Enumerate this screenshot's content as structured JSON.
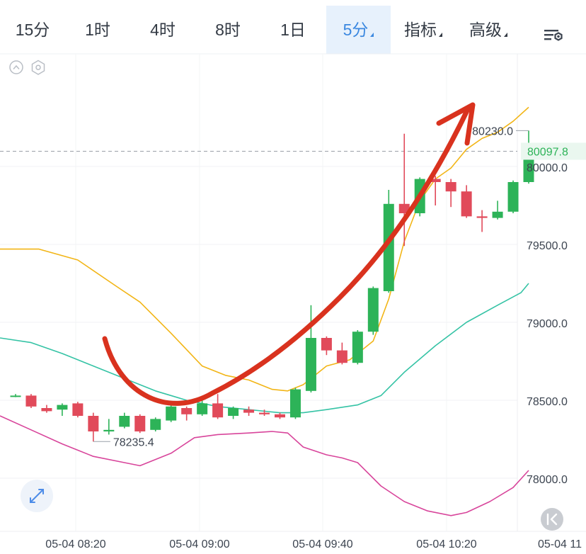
{
  "toolbar": {
    "tabs": [
      {
        "label": "15分",
        "active": false,
        "dropdown": false
      },
      {
        "label": "1时",
        "active": false,
        "dropdown": false
      },
      {
        "label": "4时",
        "active": false,
        "dropdown": false
      },
      {
        "label": "8时",
        "active": false,
        "dropdown": false
      },
      {
        "label": "1日",
        "active": false,
        "dropdown": false
      },
      {
        "label": "5分",
        "active": true,
        "dropdown": true
      },
      {
        "label": "指标",
        "active": false,
        "dropdown": true
      },
      {
        "label": "高级",
        "active": false,
        "dropdown": true
      }
    ],
    "settings_icon": "chart-settings-icon"
  },
  "controls": {
    "collapse_icon": "chevron-up-circle-icon",
    "indicator_settings_icon": "hexagon-settings-icon",
    "fullscreen_icon": "expand-arrows-icon",
    "scroll_latest_icon": "skip-to-latest-icon"
  },
  "colors": {
    "up": "#2db358",
    "down": "#e14a5a",
    "ma_short": "#f2b516",
    "boll_mid": "#35c3a5",
    "boll_low": "#d8459b",
    "annotation_arrow": "#d9321e",
    "price_label": "#2db358",
    "active_tab": "#3b88e0"
  },
  "chart_data": {
    "type": "candlestick",
    "interval": "5分",
    "y_ticks": [
      80000.0,
      79500.0,
      79000.0,
      78500.0,
      78000.0
    ],
    "y_tick_labels": [
      "80000.0",
      "79500.0",
      "79000.0",
      "78500.0",
      "78000.0"
    ],
    "x_tick_labels": [
      "05-04 08:20",
      "05-04 09:00",
      "05-04 09:40",
      "05-04 10:20",
      "05-04 11"
    ],
    "current_price": 80097.8,
    "current_price_label": "80097.8",
    "high_marker_label": "80230.0",
    "low_marker_label": "78235.4",
    "candles": [
      {
        "o": 78530,
        "c": 78530,
        "h": 78540,
        "l": 78520
      },
      {
        "o": 78530,
        "c": 78460,
        "h": 78540,
        "l": 78450
      },
      {
        "o": 78450,
        "c": 78430,
        "h": 78470,
        "l": 78420
      },
      {
        "o": 78440,
        "c": 78470,
        "h": 78480,
        "l": 78400
      },
      {
        "o": 78480,
        "c": 78400,
        "h": 78490,
        "l": 78390
      },
      {
        "o": 78400,
        "c": 78300,
        "h": 78420,
        "l": 78235
      },
      {
        "o": 78300,
        "c": 78310,
        "h": 78380,
        "l": 78280
      },
      {
        "o": 78330,
        "c": 78400,
        "h": 78420,
        "l": 78320
      },
      {
        "o": 78400,
        "c": 78300,
        "h": 78410,
        "l": 78290
      },
      {
        "o": 78310,
        "c": 78380,
        "h": 78390,
        "l": 78300
      },
      {
        "o": 78370,
        "c": 78460,
        "h": 78490,
        "l": 78360
      },
      {
        "o": 78450,
        "c": 78410,
        "h": 78460,
        "l": 78370
      },
      {
        "o": 78410,
        "c": 78480,
        "h": 78510,
        "l": 78400
      },
      {
        "o": 78480,
        "c": 78390,
        "h": 78540,
        "l": 78380
      },
      {
        "o": 78400,
        "c": 78450,
        "h": 78460,
        "l": 78380
      },
      {
        "o": 78440,
        "c": 78420,
        "h": 78460,
        "l": 78400
      },
      {
        "o": 78420,
        "c": 78410,
        "h": 78440,
        "l": 78400
      },
      {
        "o": 78410,
        "c": 78390,
        "h": 78420,
        "l": 78380
      },
      {
        "o": 78390,
        "c": 78570,
        "h": 78580,
        "l": 78380
      },
      {
        "o": 78560,
        "c": 78900,
        "h": 79110,
        "l": 78550
      },
      {
        "o": 78900,
        "c": 78820,
        "h": 78910,
        "l": 78790
      },
      {
        "o": 78820,
        "c": 78740,
        "h": 78870,
        "l": 78730
      },
      {
        "o": 78740,
        "c": 78940,
        "h": 78950,
        "l": 78730
      },
      {
        "o": 78940,
        "c": 79220,
        "h": 79230,
        "l": 78920
      },
      {
        "o": 79200,
        "c": 79760,
        "h": 79850,
        "l": 79190
      },
      {
        "o": 79760,
        "c": 79700,
        "h": 80210,
        "l": 79490
      },
      {
        "o": 79700,
        "c": 79920,
        "h": 79930,
        "l": 79680
      },
      {
        "o": 79920,
        "c": 79900,
        "h": 79940,
        "l": 79750
      },
      {
        "o": 79900,
        "c": 79840,
        "h": 79920,
        "l": 79740
      },
      {
        "o": 79840,
        "c": 79680,
        "h": 79880,
        "l": 79670
      },
      {
        "o": 79680,
        "c": 79670,
        "h": 79720,
        "l": 79580
      },
      {
        "o": 79670,
        "c": 79710,
        "h": 79780,
        "l": 79660
      },
      {
        "o": 79710,
        "c": 79900,
        "h": 79910,
        "l": 79700
      },
      {
        "o": 79900,
        "c": 80100,
        "h": 80230,
        "l": 79890
      }
    ],
    "ma_line": [
      [
        -1,
        79470
      ],
      [
        1.5,
        79470
      ],
      [
        4,
        79400
      ],
      [
        6.5,
        79230
      ],
      [
        8,
        79130
      ],
      [
        10,
        78930
      ],
      [
        12,
        78720
      ],
      [
        13.5,
        78660
      ],
      [
        15,
        78630
      ],
      [
        16.5,
        78570
      ],
      [
        17.5,
        78560
      ],
      [
        18.5,
        78600
      ],
      [
        20,
        78720
      ],
      [
        21.5,
        78760
      ],
      [
        23,
        78880
      ],
      [
        24,
        79150
      ],
      [
        25,
        79520
      ],
      [
        26,
        79780
      ],
      [
        27,
        79920
      ],
      [
        28,
        79990
      ],
      [
        29,
        80110
      ],
      [
        30,
        80180
      ],
      [
        31,
        80220
      ],
      [
        32,
        80290
      ],
      [
        33,
        80380
      ]
    ],
    "boll_mid": [
      [
        -1,
        78900
      ],
      [
        1,
        78870
      ],
      [
        3,
        78800
      ],
      [
        5,
        78720
      ],
      [
        7,
        78640
      ],
      [
        9,
        78560
      ],
      [
        11,
        78500
      ],
      [
        13,
        78460
      ],
      [
        15,
        78440
      ],
      [
        17,
        78420
      ],
      [
        18.5,
        78420
      ],
      [
        20,
        78440
      ],
      [
        22,
        78470
      ],
      [
        23.5,
        78530
      ],
      [
        25,
        78680
      ],
      [
        27,
        78850
      ],
      [
        29,
        79000
      ],
      [
        31,
        79110
      ],
      [
        32.5,
        79190
      ],
      [
        33,
        79250
      ]
    ],
    "boll_low": [
      [
        -1,
        78400
      ],
      [
        1,
        78310
      ],
      [
        3,
        78220
      ],
      [
        5,
        78140
      ],
      [
        7,
        78100
      ],
      [
        8,
        78080
      ],
      [
        10,
        78160
      ],
      [
        11.5,
        78260
      ],
      [
        13,
        78280
      ],
      [
        15,
        78290
      ],
      [
        16.5,
        78300
      ],
      [
        17.5,
        78290
      ],
      [
        18.5,
        78200
      ],
      [
        20,
        78150
      ],
      [
        21,
        78130
      ],
      [
        22,
        78100
      ],
      [
        23.5,
        77950
      ],
      [
        25,
        77850
      ],
      [
        26.5,
        77790
      ],
      [
        28,
        77760
      ],
      [
        29,
        77780
      ],
      [
        30.5,
        77850
      ],
      [
        32,
        77940
      ],
      [
        33,
        78050
      ]
    ]
  }
}
